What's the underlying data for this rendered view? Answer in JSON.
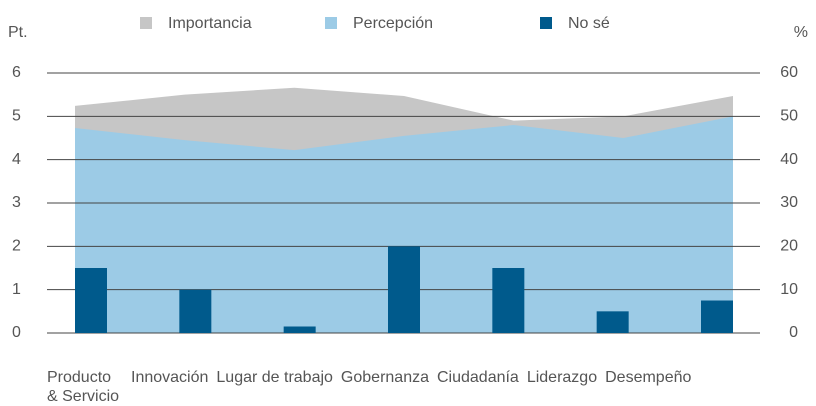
{
  "chart_data": {
    "type": "area-bar",
    "y_label": "Pt.",
    "y2_label": "%",
    "categories": [
      "Producto & Servicio",
      "Innovación",
      "Lugar de trabajo",
      "Gobernanza",
      "Ciudadanía",
      "Liderazgo",
      "Desempeño"
    ],
    "series": [
      {
        "name": "Importancia",
        "type": "area",
        "color": "#c6c6c6",
        "values": [
          5.24,
          5.5,
          5.66,
          5.47,
          4.9,
          5.0,
          5.47
        ]
      },
      {
        "name": "Percepción",
        "type": "area",
        "color": "#9ccbe6",
        "values": [
          4.73,
          4.45,
          4.22,
          4.55,
          4.8,
          4.5,
          5.0
        ]
      },
      {
        "name": "No sé",
        "type": "bar",
        "axis": "y2",
        "color": "#005a8c",
        "values": [
          15,
          10,
          1.5,
          20,
          15,
          5,
          7.5
        ]
      }
    ],
    "ylim": [
      0,
      6
    ],
    "yticks": [
      0,
      1,
      2,
      3,
      4,
      5,
      6
    ],
    "y2lim": [
      0,
      60
    ],
    "y2ticks": [
      0,
      10,
      20,
      30,
      40,
      50,
      60
    ],
    "grid": true
  }
}
